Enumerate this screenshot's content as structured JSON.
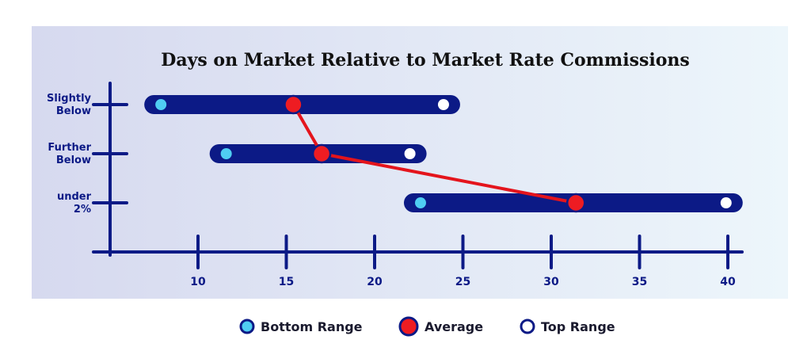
{
  "chart_data": {
    "type": "range_dot",
    "title": "Days on Market Relative to Market Rate Commissions",
    "xlabel": "",
    "ylabel": "",
    "xlim": [
      5,
      40
    ],
    "x_ticks": [
      10,
      15,
      20,
      25,
      30,
      35,
      40
    ],
    "categories": [
      {
        "lines": [
          "Slightly",
          "Below"
        ]
      },
      {
        "lines": [
          "Further",
          "Below"
        ]
      },
      {
        "lines": [
          "under",
          "2%"
        ]
      }
    ],
    "series": [
      {
        "name": "Bottom Range",
        "values": [
          7.9,
          11.6,
          22.6
        ]
      },
      {
        "name": "Average",
        "values": [
          15.4,
          17.0,
          31.4
        ]
      },
      {
        "name": "Top Range",
        "values": [
          23.9,
          22.0,
          39.9
        ]
      }
    ],
    "legend": {
      "position": "bottom-center",
      "items": [
        "Bottom Range",
        "Average",
        "Top Range"
      ]
    },
    "grid": false,
    "colors": {
      "bar": "#0c1a86",
      "axis": "#0c1a86",
      "bottom": "#4fcdf2",
      "average": "#ee1c22",
      "average_line": "#e4141c",
      "top": "#ffffff",
      "title": "#111111",
      "panel_left": "#d6d9ef",
      "panel_right": "#edf6fb"
    }
  }
}
